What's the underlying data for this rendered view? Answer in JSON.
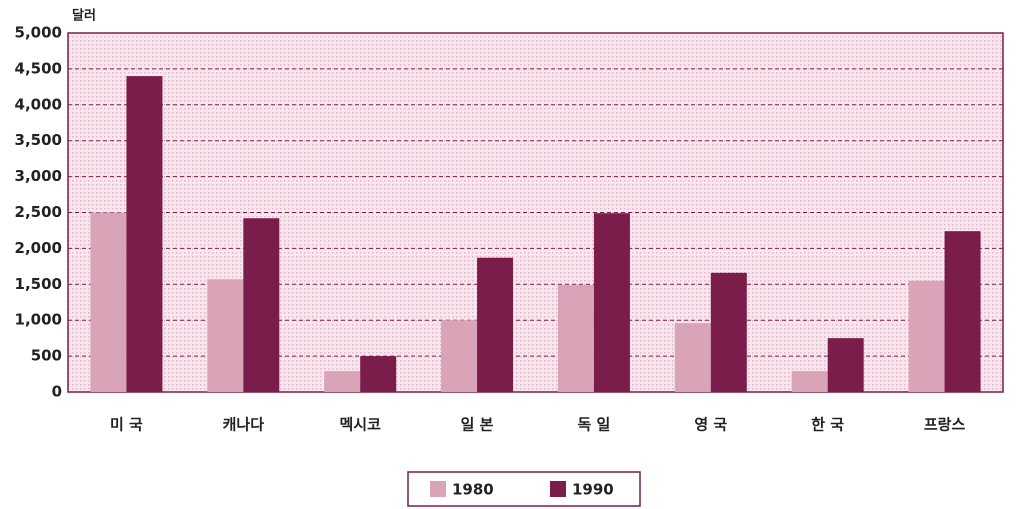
{
  "chart_data": {
    "type": "bar",
    "unit_label": "달러",
    "categories": [
      "미 국",
      "캐나다",
      "멕시코",
      "일 본",
      "독 일",
      "영 국",
      "한 국",
      "프랑스"
    ],
    "series": [
      {
        "name": "1980",
        "color": "#d9a3b8",
        "values": [
          2500,
          1570,
          290,
          1000,
          1490,
          960,
          290,
          1550
        ]
      },
      {
        "name": "1990",
        "color": "#7b1d4b",
        "values": [
          4400,
          2420,
          500,
          1870,
          2490,
          1660,
          750,
          2240
        ]
      }
    ],
    "ylim": [
      0,
      5000
    ],
    "yticks": [
      0,
      500,
      {
        "value": 1000,
        "label": "1,000"
      },
      {
        "value": 1500,
        "label": "1,500"
      },
      {
        "value": 2000,
        "label": "2,000"
      },
      {
        "value": 2500,
        "label": "2,500"
      },
      {
        "value": 3000,
        "label": "3,000"
      },
      {
        "value": 3500,
        "label": "3,500"
      },
      {
        "value": 4000,
        "label": "4,000"
      },
      {
        "value": 4500,
        "label": "4,500"
      },
      {
        "value": 5000,
        "label": "5,000"
      }
    ],
    "grid": true
  }
}
